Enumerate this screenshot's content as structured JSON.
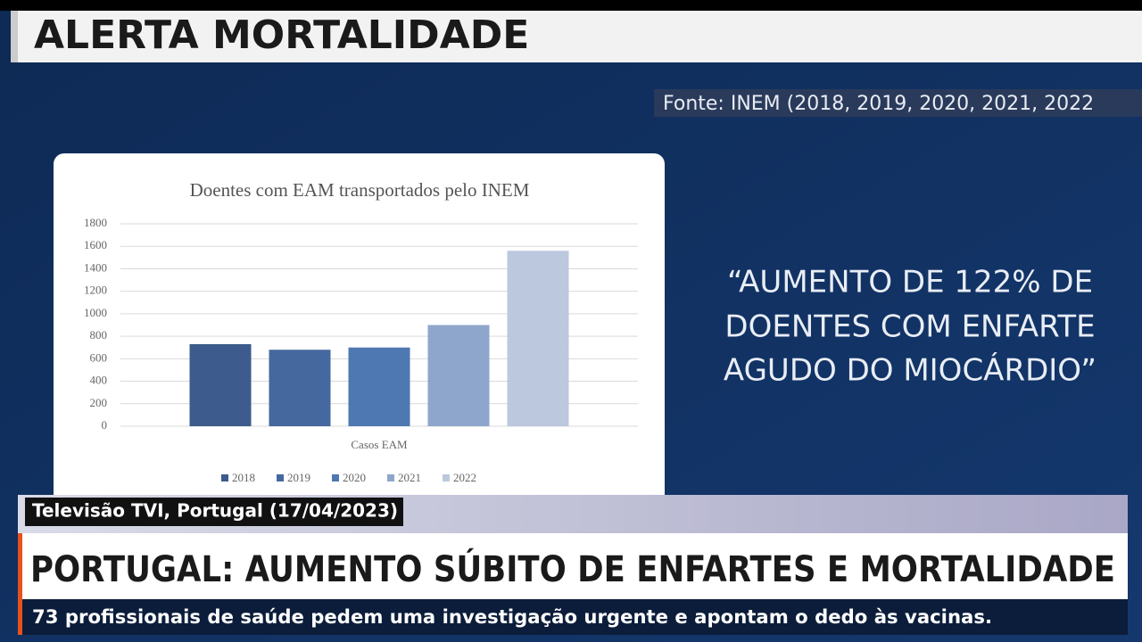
{
  "header": {
    "title": "ALERTA MORTALIDADE",
    "source": "Fonte:  INEM (2018, 2019, 2020, 2021, 2022"
  },
  "quote": [
    "“AUMENTO DE 122% DE",
    "DOENTES COM ENFARTE",
    "AGUDO DO MIOCÁRDIO”"
  ],
  "lower_third": {
    "credit": "Televisão TVI, Portugal (17/04/2023)",
    "headline": "PORTUGAL: AUMENTO SÚBITO DE ENFARTES E MORTALIDADE",
    "subline": "73 profissionais de saúde pedem uma investigação urgente e apontam o dedo às vacinas."
  },
  "chart_data": {
    "type": "bar",
    "title": "Doentes com EAM transportados pelo INEM",
    "categories": [
      "Casos EAM"
    ],
    "series": [
      {
        "name": "2018",
        "color": "#3d5b8c",
        "values": [
          730
        ]
      },
      {
        "name": "2019",
        "color": "#45689e",
        "values": [
          680
        ]
      },
      {
        "name": "2020",
        "color": "#4e78b1",
        "values": [
          700
        ]
      },
      {
        "name": "2021",
        "color": "#8fa6cc",
        "values": [
          900
        ]
      },
      {
        "name": "2022",
        "color": "#bcc8de",
        "values": [
          1560
        ]
      }
    ],
    "ylim": [
      0,
      1800
    ],
    "yticks": [
      0,
      200,
      400,
      600,
      800,
      1000,
      1200,
      1400,
      1600,
      1800
    ],
    "grid": true,
    "legend": "bottom"
  }
}
